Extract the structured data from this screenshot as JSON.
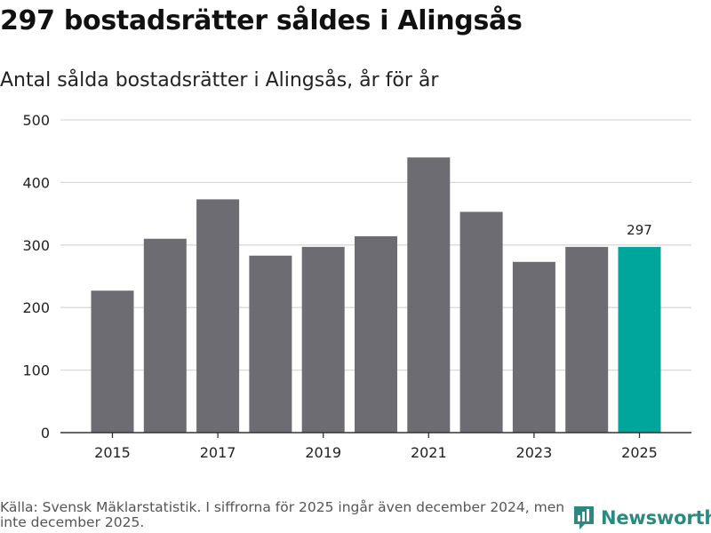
{
  "title": "297 bostadsrätter såldes i Alingsås",
  "subtitle": "Antal sålda bostadsrätter i Alingsås, år för år",
  "source": "Källa: Svensk Mäklarstatistik. I siffrorna för 2025 ingår även december 2024, men inte december 2025.",
  "brand": {
    "name": "Newsworthy",
    "icon": "newsworthy-logo-icon",
    "color": "#2a8a80"
  },
  "colors": {
    "bar": "#6d6c72",
    "highlight": "#00a69c",
    "grid": "#d9d9d9",
    "axis": "#333333"
  },
  "chart_data": {
    "type": "bar",
    "title": "297 bostadsrätter såldes i Alingsås",
    "subtitle": "Antal sålda bostadsrätter i Alingsås, år för år",
    "xlabel": "",
    "ylabel": "",
    "categories": [
      "2015",
      "2016",
      "2017",
      "2018",
      "2019",
      "2020",
      "2021",
      "2022",
      "2023",
      "2024",
      "2025"
    ],
    "values": [
      227,
      310,
      373,
      283,
      297,
      314,
      440,
      353,
      273,
      297,
      297
    ],
    "highlight_index": 10,
    "data_labels": [
      {
        "index": 10,
        "text": "297"
      }
    ],
    "x_tick_labels": [
      "2015",
      "2017",
      "2019",
      "2021",
      "2023",
      "2025"
    ],
    "ylim": [
      0,
      500
    ],
    "y_ticks": [
      "0",
      "100",
      "200",
      "300",
      "400",
      "500"
    ],
    "grid": true,
    "legend": "none"
  }
}
